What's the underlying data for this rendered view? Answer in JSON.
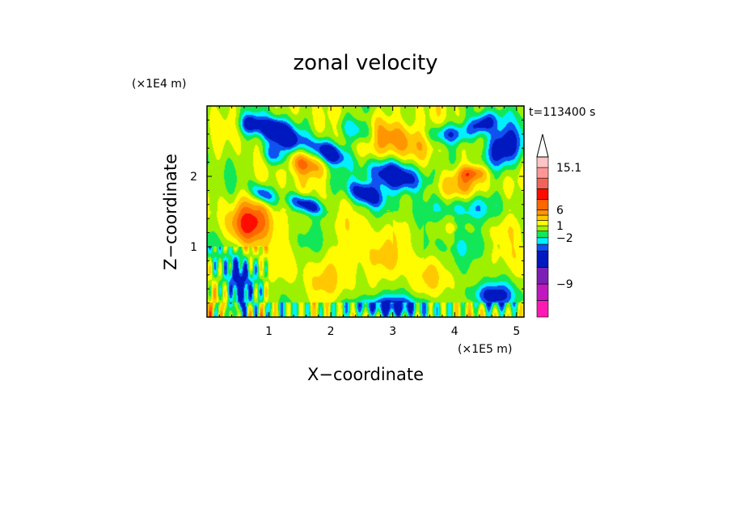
{
  "chart_data": {
    "type": "heatmap",
    "title": "zonal velocity",
    "xlabel": "X−coordinate",
    "ylabel": "Z−coordinate",
    "x_unit_note": "(×1E5 m)",
    "y_unit_note": "(×1E4 m)",
    "time_label": "t=113400 s",
    "xlim": [
      0,
      5.12
    ],
    "ylim": [
      0,
      3.0
    ],
    "x_ticks": [
      1,
      2,
      3,
      4,
      5
    ],
    "x_tick_labels": [
      "1",
      "2",
      "3",
      "4",
      "5"
    ],
    "y_ticks": [
      1,
      2
    ],
    "y_tick_labels": [
      "1",
      "2"
    ],
    "colorbar": {
      "label_values": [
        15.1,
        6,
        1,
        -2,
        -9
      ],
      "labels": [
        "15.1",
        "6",
        "1",
        "−2",
        "−9"
      ],
      "extend_max_triangle": true,
      "bands": [
        {
          "color": "#ff19b2",
          "weight": 2.5
        },
        {
          "color": "#c019c0",
          "weight": 2.5
        },
        {
          "color": "#7b1fb5",
          "weight": 2.5
        },
        {
          "color": "#0018c0",
          "weight": 2.5
        },
        {
          "color": "#0f52f0",
          "weight": 1.0
        },
        {
          "color": "#00f0ff",
          "weight": 1.0
        },
        {
          "color": "#12e857",
          "weight": 1.0
        },
        {
          "color": "#9df000",
          "weight": 0.8
        },
        {
          "color": "#fffc00",
          "weight": 0.8
        },
        {
          "color": "#ffc800",
          "weight": 0.8
        },
        {
          "color": "#ff9600",
          "weight": 0.8
        },
        {
          "color": "#ff6600",
          "weight": 1.6
        },
        {
          "color": "#ff0c00",
          "weight": 1.6
        },
        {
          "color": "#f0645a",
          "weight": 1.6
        },
        {
          "color": "#ff9696",
          "weight": 1.6
        },
        {
          "color": "#ffc3c3",
          "weight": 1.6
        }
      ]
    },
    "field_palette": [
      "#0018c0",
      "#0f52f0",
      "#00f0ff",
      "#12e857",
      "#9df000",
      "#fffc00",
      "#ffc800",
      "#ff9600",
      "#ff6600",
      "#ff0c00"
    ]
  }
}
